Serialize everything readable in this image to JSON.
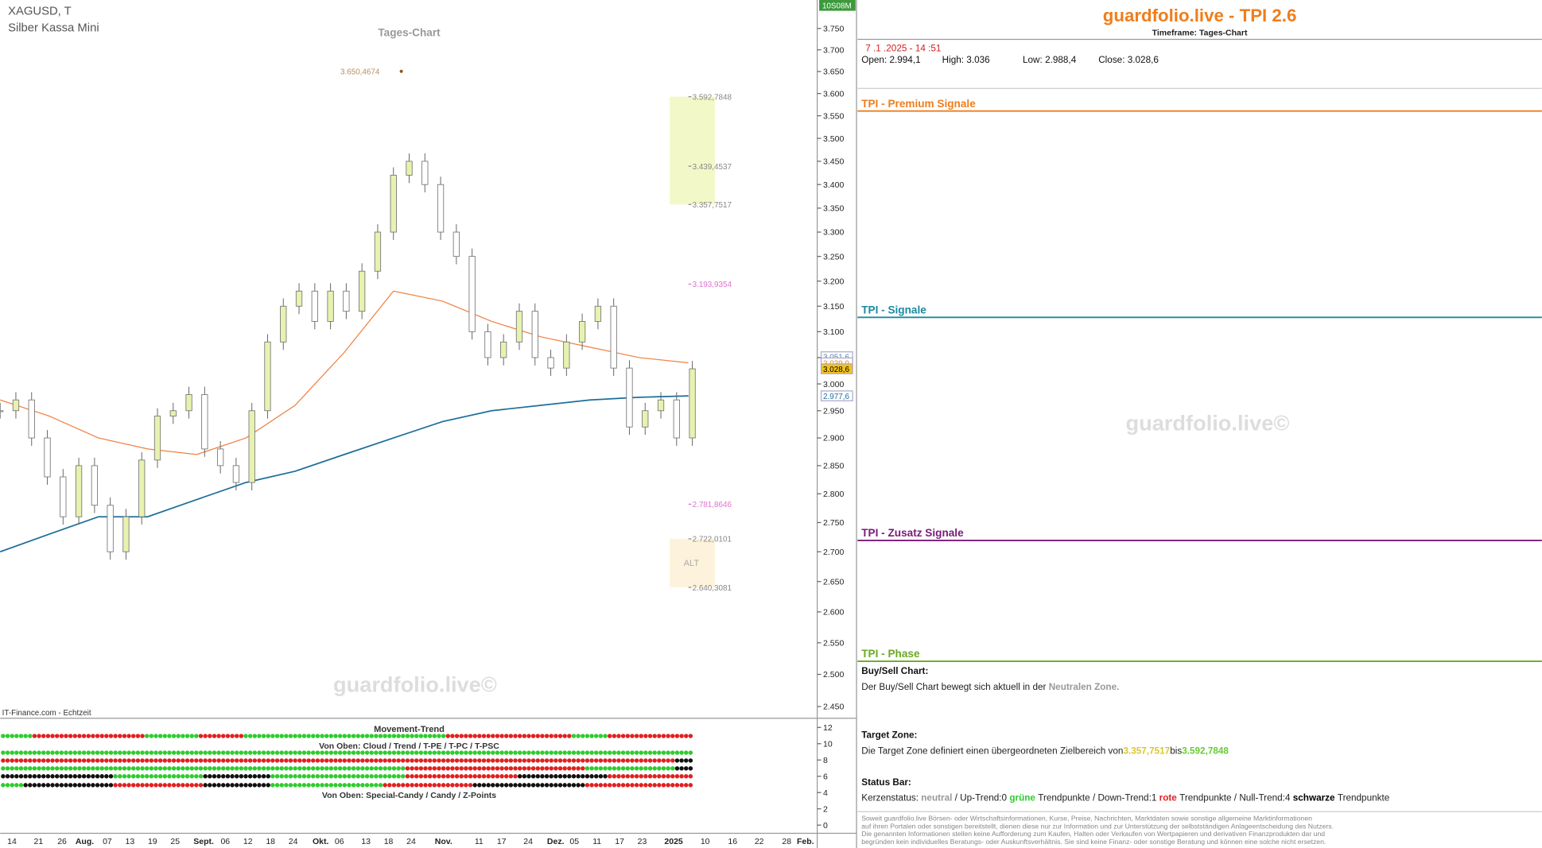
{
  "chart": {
    "type": "candlestick-overview",
    "symbol": "XAGUSD, T",
    "name": "Silber Kassa Mini",
    "timeframe_label": "Tages-Chart",
    "source": "IT-Finance.com - Echtzeit",
    "watermark": "guardfolio.live©",
    "top_label": "10S08M",
    "scale": "log",
    "ylim": [
      2433.5,
      3817.6
    ],
    "yticks": [
      {
        "value": 3750,
        "label": "3.750"
      },
      {
        "value": 3700,
        "label": "3.700"
      },
      {
        "value": 3650,
        "label": "3.650"
      },
      {
        "value": 3600,
        "label": "3.600"
      },
      {
        "value": 3550,
        "label": "3.550"
      },
      {
        "value": 3500,
        "label": "3.500"
      },
      {
        "value": 3450,
        "label": "3.450"
      },
      {
        "value": 3400,
        "label": "3.400"
      },
      {
        "value": 3350,
        "label": "3.350"
      },
      {
        "value": 3300,
        "label": "3.300"
      },
      {
        "value": 3250,
        "label": "3.250"
      },
      {
        "value": 3200,
        "label": "3.200"
      },
      {
        "value": 3150,
        "label": "3.150"
      },
      {
        "value": 3100,
        "label": "3.100"
      },
      {
        "value": 3050,
        "label": "3.050"
      },
      {
        "value": 3000,
        "label": "3.000"
      },
      {
        "value": 2950,
        "label": "2.950"
      },
      {
        "value": 2900,
        "label": "2.900"
      },
      {
        "value": 2850,
        "label": "2.850"
      },
      {
        "value": 2800,
        "label": "2.800"
      },
      {
        "value": 2750,
        "label": "2.750"
      },
      {
        "value": 2700,
        "label": "2.700"
      },
      {
        "value": 2650,
        "label": "2.650"
      },
      {
        "value": 2600,
        "label": "2.600"
      },
      {
        "value": 2550,
        "label": "2.550"
      },
      {
        "value": 2500,
        "label": "2.500"
      },
      {
        "value": 2450,
        "label": "2.450"
      }
    ],
    "x_labels": [
      "14",
      "21",
      "26",
      "Aug.",
      "07",
      "13",
      "19",
      "25",
      "Sept.",
      "06",
      "12",
      "18",
      "24",
      "Okt.",
      "06",
      "13",
      "18",
      "24",
      "Nov.",
      "11",
      "17",
      "24",
      "Dez.",
      "05",
      "11",
      "17",
      "23",
      "2025",
      "10",
      "16",
      "22",
      "28",
      "Feb."
    ],
    "close": [
      2950,
      2970,
      2900,
      2830,
      2760,
      2850,
      2780,
      2700,
      2760,
      2860,
      2940,
      2950,
      2980,
      2880,
      2850,
      2820,
      2950,
      3080,
      3150,
      3180,
      3120,
      3180,
      3140,
      3220,
      3300,
      3420,
      3450,
      3400,
      3300,
      3250,
      3100,
      3050,
      3080,
      3140,
      3050,
      3030,
      3080,
      3120,
      3150,
      3030,
      2920,
      2950,
      2970,
      2900,
      3028.6
    ],
    "ma_slow": {
      "color": "#1e6e9a",
      "values": [
        2700,
        2730,
        2760,
        2760,
        2790,
        2820,
        2840,
        2870,
        2900,
        2930,
        2950,
        2960,
        2970,
        2975,
        2977.6
      ]
    },
    "ma_fast": {
      "color": "#f08040",
      "values": [
        2970,
        2940,
        2900,
        2880,
        2870,
        2900,
        2960,
        3060,
        3180,
        3160,
        3120,
        3090,
        3070,
        3050,
        3040
      ]
    },
    "annotations": [
      {
        "value": 3650.4674,
        "label": "3.650,4674"
      },
      {
        "value": 3592.7848,
        "label": "3.592,7848"
      },
      {
        "value": 3439.4537,
        "label": "3.439,4537"
      },
      {
        "value": 3357.7517,
        "label": "3.357,7517"
      },
      {
        "value": 3193.9354,
        "label": "3.193,9354"
      },
      {
        "value": 2781.8646,
        "label": "2.781,8646"
      },
      {
        "value": 2722.0101,
        "label": "2.722,0101"
      },
      {
        "value": 2640.3081,
        "label": "2.640,3081"
      }
    ],
    "zone_label": "ALT",
    "price_boxes": [
      {
        "value": 3051.6,
        "label": "3.051,6"
      },
      {
        "value": 3039.9,
        "label": "3.039,9"
      },
      {
        "value": 3028.6,
        "label": "3.028,6"
      },
      {
        "value": 2977.6,
        "label": "2.977,6"
      }
    ],
    "indicator": {
      "title": "Movement-Trend",
      "subtitle1": "Von Oben: Cloud / Trend / T-PE / T-PC / T-PSC",
      "subtitle2": "Von Oben: Special-Candy / Candy / Z-Points",
      "ylim": [
        -1,
        13
      ],
      "yticks": [
        12,
        10,
        8,
        6,
        4,
        2,
        0
      ]
    }
  },
  "panel": {
    "title": "guardfolio.live - TPI 2.6",
    "subtitle": "Timeframe: Tages-Chart",
    "datetime": "7 .1 .2025 - 14 :51",
    "ohlc": [
      [
        "Open:",
        "2.994,1"
      ],
      [
        "High:",
        "3.036"
      ],
      [
        "Low:",
        "2.988,4"
      ],
      [
        "Close:",
        "3.028,6"
      ]
    ],
    "sections": [
      "TPI - Premium Signale",
      "TPI - Signale",
      "TPI - Zusatz Signale",
      "TPI - Phase"
    ],
    "watermark": "guardfolio.live©",
    "buy_sell": {
      "heading": "Buy/Sell Chart:",
      "text": "Der Buy/Sell Chart bewegt sich aktuell in der",
      "zone": "Neutralen Zone."
    },
    "target": {
      "heading": "Target Zone:",
      "text": "Die Target Zone definiert einen übergeordneten Zielbereich von",
      "from": "3.357,7517",
      "sep": "bis",
      "to": "3.592,7848"
    },
    "status": {
      "heading": "Status Bar:",
      "parts": [
        "Kerzenstatus:",
        "neutral",
        "/ Up-Trend:0",
        "grüne",
        "Trendpunkte",
        "/ Down-Trend:1",
        "rote",
        "Trendpunkte",
        "/ Null-Trend:4",
        "schwarze",
        "Trendpunkte"
      ]
    },
    "disclaimer": [
      "Soweit guardfolio.live Börsen- oder Wirtschaftsinformationen, Kurse, Preise, Nachrichten, Marktdaten sowie sonstige allgemeine Marktinformationen",
      "auf ihren Portalen oder sonstigen bereitstellt, dienen diese nur zur Information und zur Unterstützung der selbstständigen Anlageentscheidung des Nutzers.",
      "Die genannten Informationen stellen keine Aufforderung zum Kaufen, Halten oder Verkaufen von Wertpapieren und derivativen Finanzprodukten dar und",
      "begründen kein individuelles Beratungs- oder Auskunftsverhältnis. Sie sind keine Finanz- oder sonstige Beratung und können eine solche nicht ersetzen."
    ]
  }
}
